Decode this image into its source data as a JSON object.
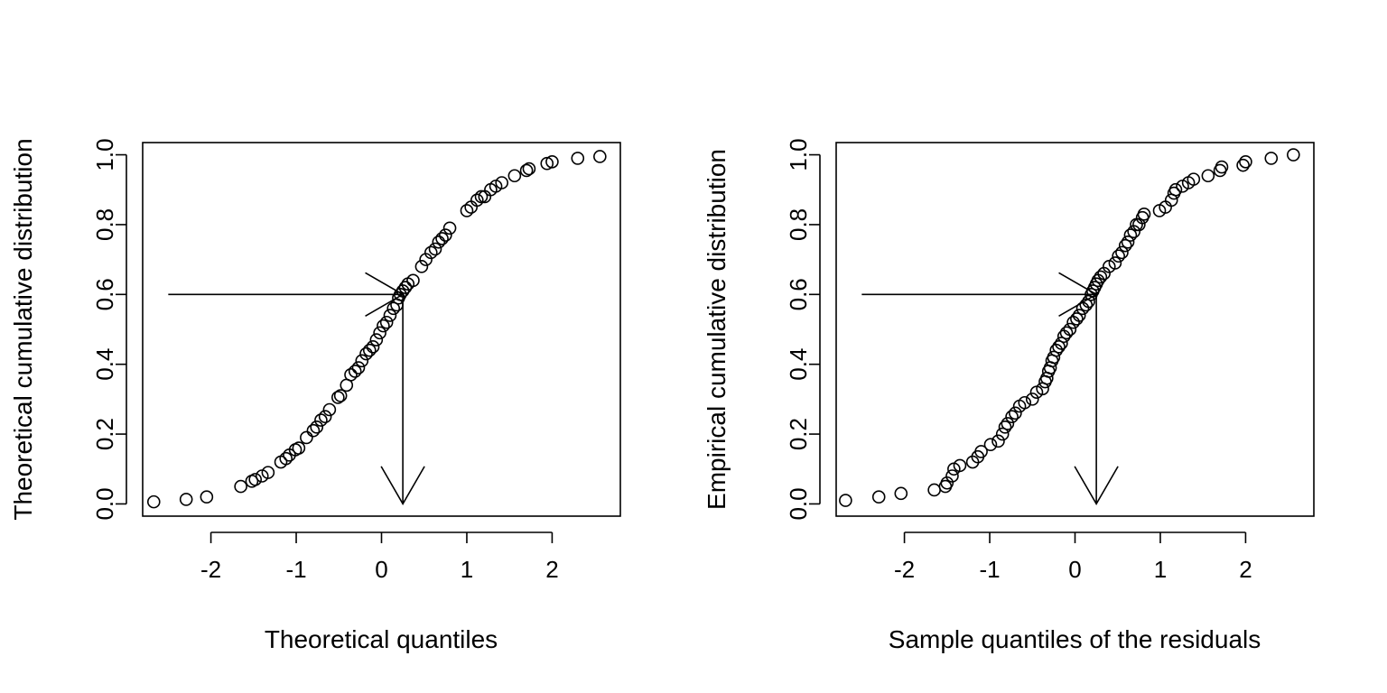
{
  "chart_data": [
    {
      "type": "scatter",
      "xlabel": "Theoretical quantiles",
      "ylabel": "Theoretical cumulative distribution",
      "xlim": [
        -2.8,
        2.8
      ],
      "ylim": [
        -0.035,
        1.035
      ],
      "x_ticks": [
        -2,
        -1,
        0,
        1,
        2
      ],
      "x_tick_labels": [
        "-2",
        "-1",
        "0",
        "1",
        "2"
      ],
      "y_ticks": [
        0,
        0.2,
        0.4,
        0.6,
        0.8,
        1
      ],
      "y_tick_labels": [
        "0.0",
        "0.2",
        "0.4",
        "0.6",
        "0.8",
        "1.0"
      ],
      "grid": false,
      "series": [
        {
          "x": [
            -2.67,
            -2.29,
            -2.05,
            -1.65,
            -1.52,
            -1.48,
            -1.4,
            -1.33,
            -1.18,
            -1.12,
            -1.08,
            -1.01,
            -0.97,
            -0.88,
            -0.8,
            -0.76,
            -0.71,
            -0.66,
            -0.61,
            -0.51,
            -0.48,
            -0.41,
            -0.36,
            -0.31,
            -0.27,
            -0.23,
            -0.18,
            -0.14,
            -0.1,
            -0.06,
            -0.02,
            0.02,
            0.06,
            0.1,
            0.14,
            0.18,
            0.2,
            0.22,
            0.25,
            0.28,
            0.31,
            0.37,
            0.47,
            0.52,
            0.58,
            0.63,
            0.67,
            0.71,
            0.75,
            0.8,
            1.0,
            1.05,
            1.12,
            1.17,
            1.21,
            1.28,
            1.34,
            1.41,
            1.56,
            1.7,
            1.73,
            1.94,
            2.0,
            2.3,
            2.56
          ],
          "y": [
            0.006,
            0.013,
            0.02,
            0.05,
            0.065,
            0.07,
            0.08,
            0.09,
            0.12,
            0.13,
            0.14,
            0.155,
            0.16,
            0.19,
            0.21,
            0.22,
            0.24,
            0.25,
            0.27,
            0.305,
            0.31,
            0.34,
            0.37,
            0.38,
            0.39,
            0.41,
            0.43,
            0.44,
            0.45,
            0.47,
            0.49,
            0.51,
            0.52,
            0.54,
            0.56,
            0.57,
            0.59,
            0.6,
            0.61,
            0.62,
            0.63,
            0.64,
            0.68,
            0.7,
            0.72,
            0.73,
            0.75,
            0.76,
            0.77,
            0.79,
            0.84,
            0.85,
            0.87,
            0.88,
            0.88,
            0.9,
            0.91,
            0.92,
            0.94,
            0.955,
            0.96,
            0.975,
            0.98,
            0.99,
            0.995
          ]
        }
      ],
      "arrows": [
        {
          "x0": -2.5,
          "y0": 0.6,
          "x1": 0.25,
          "y1": 0.6
        },
        {
          "x0": 0.25,
          "y0": 0.6,
          "x1": 0.25,
          "y1": 0.0
        }
      ]
    },
    {
      "type": "scatter",
      "xlabel": "Sample quantiles of the residuals",
      "ylabel": "Empirical cumulative distribution",
      "xlim": [
        -2.8,
        2.8
      ],
      "ylim": [
        -0.035,
        1.035
      ],
      "x_ticks": [
        -2,
        -1,
        0,
        1,
        2
      ],
      "x_tick_labels": [
        "-2",
        "-1",
        "0",
        "1",
        "2"
      ],
      "y_ticks": [
        0,
        0.2,
        0.4,
        0.6,
        0.8,
        1
      ],
      "y_tick_labels": [
        "0.0",
        "0.2",
        "0.4",
        "0.6",
        "0.8",
        "1.0"
      ],
      "grid": false,
      "series": [
        {
          "x": [
            -2.69,
            -2.3,
            -2.04,
            -1.65,
            -1.52,
            -1.5,
            -1.44,
            -1.42,
            -1.35,
            -1.2,
            -1.14,
            -1.1,
            -0.99,
            -0.9,
            -0.85,
            -0.82,
            -0.79,
            -0.74,
            -0.7,
            -0.65,
            -0.59,
            -0.5,
            -0.45,
            -0.38,
            -0.35,
            -0.33,
            -0.31,
            -0.29,
            -0.27,
            -0.25,
            -0.22,
            -0.19,
            -0.16,
            -0.13,
            -0.1,
            -0.06,
            -0.02,
            0.02,
            0.05,
            0.09,
            0.13,
            0.16,
            0.19,
            0.21,
            0.23,
            0.25,
            0.27,
            0.3,
            0.34,
            0.4,
            0.47,
            0.51,
            0.55,
            0.59,
            0.62,
            0.65,
            0.69,
            0.72,
            0.75,
            0.79,
            0.81,
            0.99,
            1.06,
            1.13,
            1.16,
            1.18,
            1.26,
            1.33,
            1.39,
            1.56,
            1.7,
            1.72,
            1.97,
            2.0,
            2.3,
            2.56
          ],
          "y": [
            0.01,
            0.02,
            0.03,
            0.04,
            0.05,
            0.06,
            0.08,
            0.1,
            0.11,
            0.12,
            0.135,
            0.15,
            0.17,
            0.18,
            0.2,
            0.22,
            0.23,
            0.25,
            0.26,
            0.28,
            0.29,
            0.3,
            0.32,
            0.33,
            0.35,
            0.36,
            0.38,
            0.39,
            0.41,
            0.42,
            0.44,
            0.45,
            0.46,
            0.48,
            0.49,
            0.5,
            0.52,
            0.53,
            0.54,
            0.56,
            0.57,
            0.58,
            0.6,
            0.61,
            0.62,
            0.63,
            0.64,
            0.65,
            0.66,
            0.68,
            0.69,
            0.71,
            0.72,
            0.74,
            0.75,
            0.77,
            0.78,
            0.8,
            0.8,
            0.82,
            0.83,
            0.84,
            0.85,
            0.87,
            0.89,
            0.9,
            0.91,
            0.92,
            0.93,
            0.94,
            0.955,
            0.965,
            0.97,
            0.98,
            0.99,
            1.0
          ]
        }
      ],
      "arrows": [
        {
          "x0": -2.5,
          "y0": 0.6,
          "x1": 0.25,
          "y1": 0.6
        },
        {
          "x0": 0.25,
          "y0": 0.6,
          "x1": 0.25,
          "y1": 0.0
        }
      ]
    }
  ]
}
